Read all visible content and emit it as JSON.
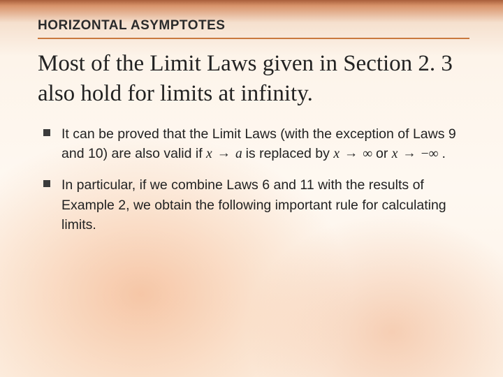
{
  "colors": {
    "underline": "#c9793e",
    "bullet_square": "#3b3b3b",
    "text": "#222222",
    "bg_top_band": "#a85e3a",
    "bg_warm_glow": "#f0a06e",
    "bg_base": "#fdf4ea"
  },
  "typography": {
    "heading_font": "Arial",
    "heading_size_pt": 14,
    "heading_weight": "bold",
    "body_font": "Times New Roman",
    "body_size_pt": 25,
    "bullet_font": "Arial",
    "bullet_size_pt": 14
  },
  "heading": "HORIZONTAL ASYMPTOTES",
  "body": "Most of the Limit Laws given in Section 2. 3 also hold for limits at infinity.",
  "bullets": [
    {
      "pre": "It can be proved that the Limit Laws (with the exception of Laws 9 and 10) are also valid if ",
      "math1_lhs": "x",
      "math1_arrow": "→",
      "math1_rhs": "a",
      "mid1": " is replaced by ",
      "math2_lhs": "x",
      "math2_arrow": "→",
      "math2_rhs": "∞",
      "mid2": " or ",
      "math3_lhs": "x",
      "math3_arrow": "→",
      "math3_rhs": "−∞",
      "tail": "."
    },
    {
      "text": "In particular, if we combine Laws 6 and 11 with the results of Example 2, we obtain the following important rule for calculating limits."
    }
  ]
}
